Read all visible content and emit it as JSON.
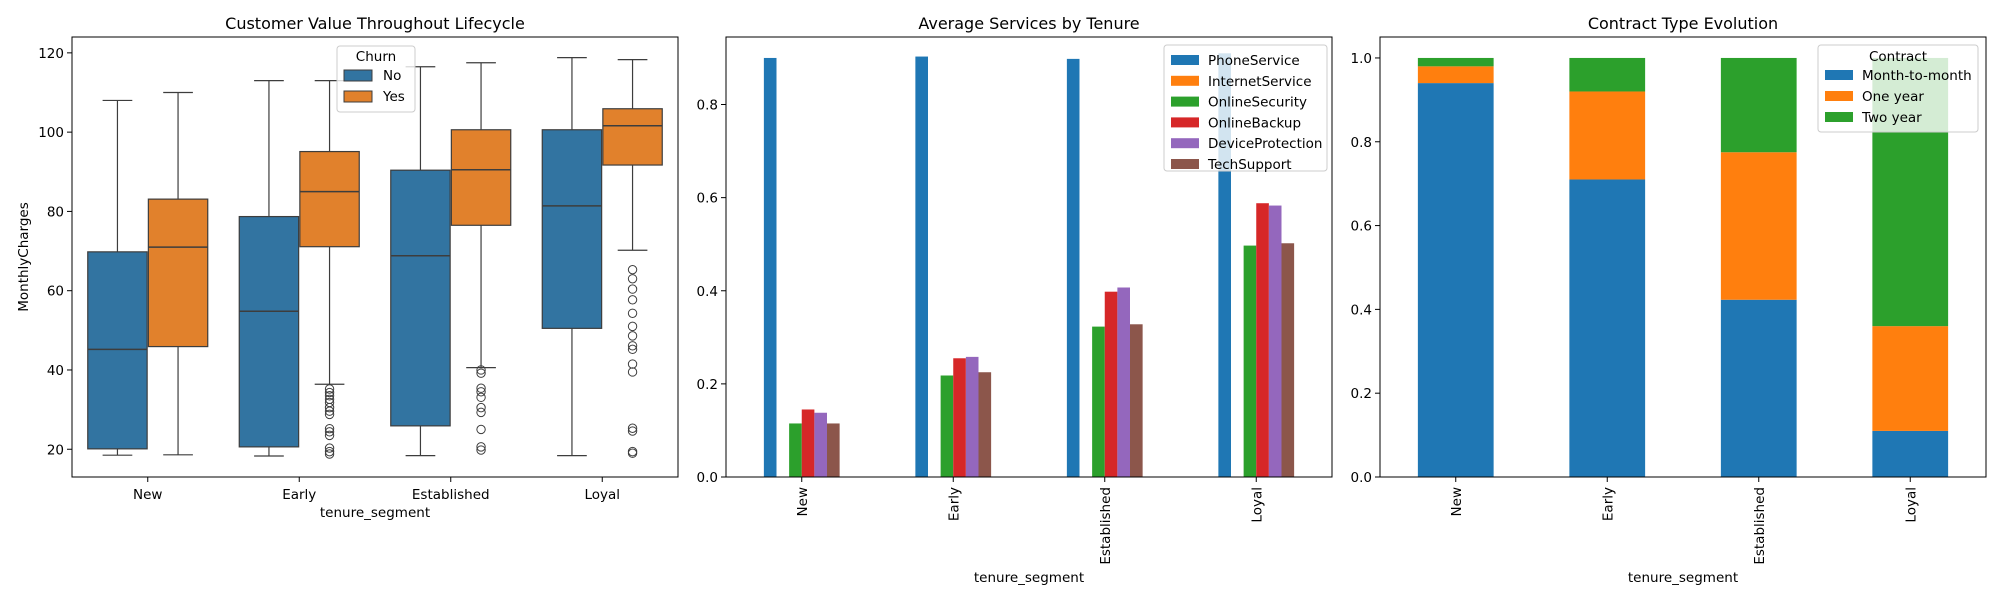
{
  "chart_data": [
    {
      "type": "box",
      "title": "Customer Value Throughout Lifecycle",
      "xlabel": "tenure_segment",
      "ylabel": "MonthlyCharges",
      "categories": [
        "New",
        "Early",
        "Established",
        "Loyal"
      ],
      "ylim": [
        13,
        124
      ],
      "yticks": [
        20,
        40,
        60,
        80,
        100,
        120
      ],
      "legend": {
        "title": "Churn",
        "placement": "top-center"
      },
      "series": [
        {
          "name": "No",
          "color": "#3274a1",
          "boxes": [
            {
              "whislo": 18.5,
              "q1": 20.1,
              "med": 45.2,
              "q3": 69.8,
              "whishi": 108.0,
              "fliers": []
            },
            {
              "whislo": 18.3,
              "q1": 20.6,
              "med": 54.8,
              "q3": 78.7,
              "whishi": 113.0,
              "fliers": []
            },
            {
              "whislo": 18.4,
              "q1": 25.9,
              "med": 68.8,
              "q3": 90.4,
              "whishi": 116.5,
              "fliers": []
            },
            {
              "whislo": 18.4,
              "q1": 50.5,
              "med": 81.4,
              "q3": 100.6,
              "whishi": 118.8,
              "fliers": []
            }
          ]
        },
        {
          "name": "Yes",
          "color": "#e1812c",
          "boxes": [
            {
              "whislo": 18.6,
              "q1": 45.9,
              "med": 71.0,
              "q3": 83.1,
              "whishi": 110.0,
              "fliers": []
            },
            {
              "whislo": 36.4,
              "q1": 71.1,
              "med": 85.0,
              "q3": 95.1,
              "whishi": 113.0,
              "fliers": [
                35.2,
                34.3,
                33.5,
                32.6,
                31.8,
                30.5,
                29.6,
                28.8,
                25.2,
                24.4,
                23.5,
                20.3,
                19.4,
                18.8
              ]
            },
            {
              "whislo": 40.6,
              "q1": 76.5,
              "med": 90.5,
              "q3": 100.6,
              "whishi": 117.5,
              "fliers": [
                40.0,
                39.2,
                35.4,
                34.5,
                33.1,
                30.5,
                29.3,
                25.0,
                20.6,
                19.8
              ]
            },
            {
              "whislo": 70.2,
              "q1": 91.7,
              "med": 101.6,
              "q3": 105.9,
              "whishi": 118.3,
              "fliers": [
                65.3,
                63.0,
                60.4,
                57.7,
                54.3,
                51.0,
                48.6,
                46.1,
                45.2,
                41.5,
                39.5,
                25.3,
                24.6,
                19.4,
                19.0
              ]
            }
          ]
        }
      ]
    },
    {
      "type": "bar",
      "title": "Average Services by Tenure",
      "xlabel": "tenure_segment",
      "ylabel": "",
      "categories": [
        "New",
        "Early",
        "Established",
        "Loyal"
      ],
      "ylim": [
        0,
        0.945
      ],
      "yticks": [
        "0.0",
        "0.2",
        "0.4",
        "0.6",
        "0.8"
      ],
      "legend": {
        "placement": "top-right"
      },
      "series": [
        {
          "name": "PhoneService",
          "color": "#1f77b4",
          "values": [
            0.9,
            0.903,
            0.898,
            0.91
          ]
        },
        {
          "name": "InternetService",
          "color": "#ff7f0e",
          "values": [
            0,
            0,
            0,
            0
          ]
        },
        {
          "name": "OnlineSecurity",
          "color": "#2ca02c",
          "values": [
            0.115,
            0.218,
            0.323,
            0.497
          ]
        },
        {
          "name": "OnlineBackup",
          "color": "#d62728",
          "values": [
            0.145,
            0.255,
            0.398,
            0.588
          ]
        },
        {
          "name": "DeviceProtection",
          "color": "#9467bd",
          "values": [
            0.138,
            0.258,
            0.407,
            0.583
          ]
        },
        {
          "name": "TechSupport",
          "color": "#8c564b",
          "values": [
            0.115,
            0.225,
            0.328,
            0.502
          ]
        }
      ]
    },
    {
      "type": "stacked-bar",
      "title": "Contract Type Evolution",
      "xlabel": "tenure_segment",
      "ylabel": "",
      "categories": [
        "New",
        "Early",
        "Established",
        "Loyal"
      ],
      "ylim": [
        0,
        1.05
      ],
      "yticks": [
        "0.0",
        "0.2",
        "0.4",
        "0.6",
        "0.8",
        "1.0"
      ],
      "legend": {
        "title": "Contract",
        "placement": "top-right"
      },
      "series": [
        {
          "name": "Month-to-month",
          "color": "#1f77b4",
          "values": [
            0.94,
            0.71,
            0.423,
            0.11
          ]
        },
        {
          "name": "One year",
          "color": "#ff7f0e",
          "values": [
            0.04,
            0.21,
            0.352,
            0.25
          ]
        },
        {
          "name": "Two year",
          "color": "#2ca02c",
          "values": [
            0.02,
            0.08,
            0.225,
            0.64
          ]
        }
      ]
    }
  ]
}
